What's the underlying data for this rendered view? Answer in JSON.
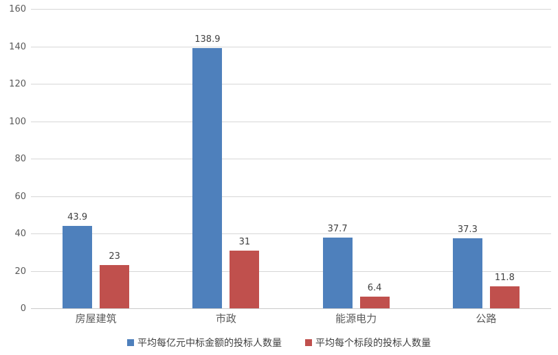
{
  "chart_data": {
    "type": "bar",
    "categories": [
      "房屋建筑",
      "市政",
      "能源电力",
      "公路"
    ],
    "series": [
      {
        "name": "平均每亿元中标金额的投标人数量",
        "color": "#4e80bc",
        "values": [
          43.9,
          138.9,
          37.7,
          37.3
        ]
      },
      {
        "name": "平均每个标段的投标人数量",
        "color": "#c0504d",
        "values": [
          23,
          31,
          6.4,
          11.8
        ]
      }
    ],
    "title": "",
    "xlabel": "",
    "ylabel": "",
    "ylim": [
      0,
      160
    ],
    "yticks": [
      0,
      20,
      40,
      60,
      80,
      100,
      120,
      140,
      160
    ],
    "grid": "horizontal",
    "legend_position": "bottom",
    "data_labels": true
  },
  "style": {
    "gridline_color": "#d6d6d6",
    "baseline_color": "#c9c9c9",
    "tick_label_color": "#595959",
    "value_label_color": "#404040",
    "category_label_color": "#595959",
    "background": "#ffffff"
  }
}
